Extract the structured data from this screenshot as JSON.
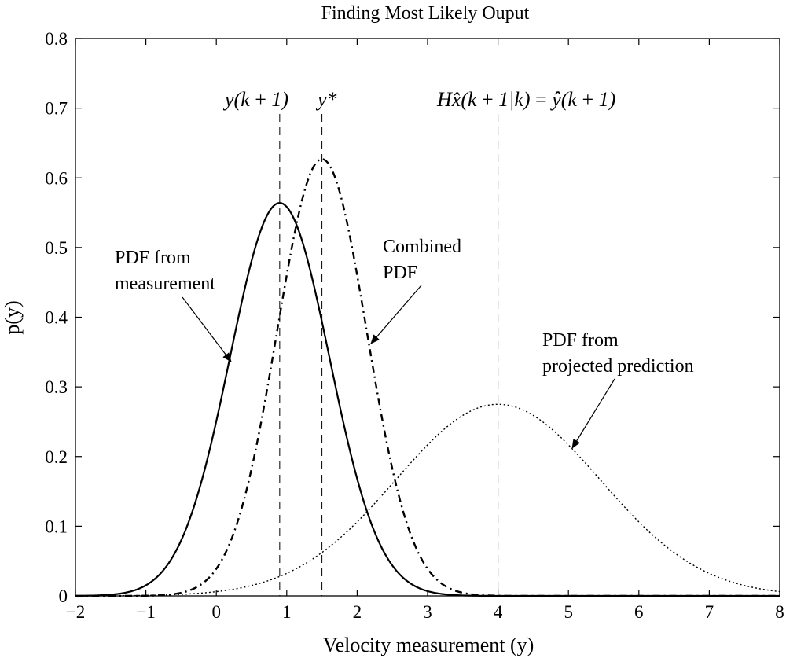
{
  "chart_data": {
    "type": "line",
    "title": "Finding Most Likely Ouput",
    "xlabel": "Velocity measurement (y)",
    "ylabel": "p(y)",
    "xlim": [
      -2,
      8
    ],
    "ylim": [
      0,
      0.8
    ],
    "xticks": [
      -2,
      -1,
      0,
      1,
      2,
      3,
      4,
      5,
      6,
      7,
      8
    ],
    "yticks": [
      0,
      0.1,
      0.2,
      0.3,
      0.4,
      0.5,
      0.6,
      0.7,
      0.8
    ],
    "grid": false,
    "series": [
      {
        "style": "solid",
        "mean": 0.9,
        "std": 0.707,
        "peak": 0.564,
        "x": [
          -2,
          -1.5,
          -1,
          -0.5,
          0,
          0.5,
          0.9,
          1.5,
          2,
          2.5,
          3,
          3.5,
          4
        ],
        "y": [
          0.0,
          0.0016,
          0.0155,
          0.0786,
          0.2249,
          0.4488,
          0.5642,
          0.3929,
          0.1689,
          0.0438,
          0.0069,
          0.0007,
          0.0
        ]
      },
      {
        "style": "dashdot",
        "mean": 1.5,
        "std": 0.636,
        "peak": 0.627,
        "x": [
          -1,
          -0.5,
          0,
          0.5,
          1,
          1.5,
          2,
          2.5,
          3,
          3.5,
          4
        ],
        "y": [
          0.0003,
          0.0044,
          0.0392,
          0.1838,
          0.4614,
          0.6272,
          0.4614,
          0.1838,
          0.0392,
          0.0044,
          0.0003
        ]
      },
      {
        "style": "dotted",
        "mean": 4.0,
        "std": 1.45,
        "peak": 0.275,
        "x": [
          -2,
          -1,
          0,
          1,
          2,
          3,
          4,
          5,
          6,
          7,
          8
        ],
        "y": [
          0.0001,
          0.0007,
          0.0063,
          0.0327,
          0.1063,
          0.2176,
          0.2751,
          0.2176,
          0.1063,
          0.0327,
          0.0063
        ]
      }
    ],
    "vlines": [
      {
        "x": 0.9,
        "label_math": "y(k+1)"
      },
      {
        "x": 1.5,
        "label_math": "y*"
      },
      {
        "x": 4.0,
        "label_math": "Hx̂(k+1|k) = ŷ(k+1)"
      }
    ],
    "annotations": [
      {
        "lines": [
          "PDF from",
          "measurement"
        ],
        "points_to": [
          0.2,
          0.34
        ]
      },
      {
        "lines": [
          "Combined",
          "PDF"
        ],
        "points_to": [
          2.2,
          0.36
        ]
      },
      {
        "lines": [
          "PDF from",
          "projected prediction"
        ],
        "points_to": [
          5.2,
          0.21
        ]
      }
    ]
  }
}
